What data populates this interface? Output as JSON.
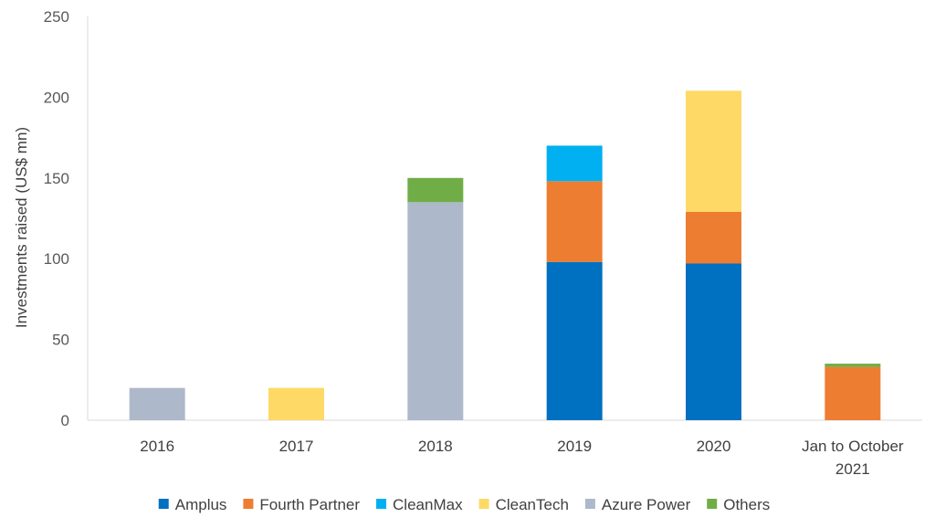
{
  "chart_data": {
    "type": "bar",
    "stacked": true,
    "title": "",
    "xlabel": "",
    "ylabel": "Investments raised (US$ mn)",
    "ylim": [
      0,
      250
    ],
    "yticks": [
      0,
      50,
      100,
      150,
      200,
      250
    ],
    "grid": false,
    "legend_position": "bottom",
    "categories": [
      [
        "2016"
      ],
      [
        "2017"
      ],
      [
        "2018"
      ],
      [
        "2019"
      ],
      [
        "2020"
      ],
      [
        "Jan to October",
        "2021"
      ]
    ],
    "series": [
      {
        "name": "Amplus",
        "color": "#0070C0",
        "values": [
          0,
          0,
          0,
          98,
          97,
          0
        ]
      },
      {
        "name": "Fourth Partner",
        "color": "#ED7D31",
        "values": [
          0,
          0,
          0,
          50,
          32,
          33
        ]
      },
      {
        "name": "CleanMax",
        "color": "#00B0F0",
        "values": [
          0,
          0,
          0,
          22,
          0,
          0
        ]
      },
      {
        "name": "CleanTech",
        "color": "#FFD966",
        "values": [
          0,
          20,
          0,
          0,
          75,
          0
        ]
      },
      {
        "name": "Azure Power",
        "color": "#ADB9CA",
        "values": [
          20,
          0,
          135,
          0,
          0,
          0
        ]
      },
      {
        "name": "Others",
        "color": "#70AD47",
        "values": [
          0,
          0,
          15,
          0,
          0,
          2
        ]
      }
    ]
  }
}
